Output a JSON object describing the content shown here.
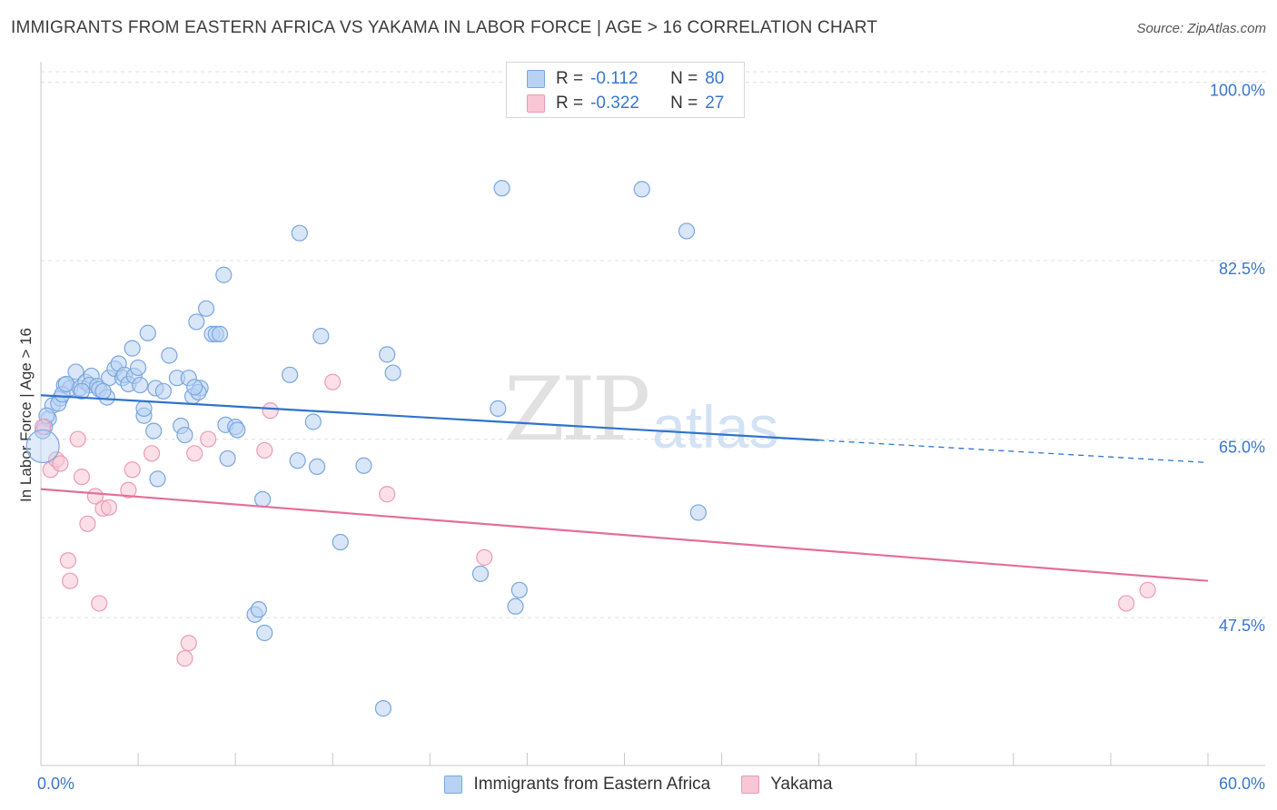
{
  "title": "IMMIGRANTS FROM EASTERN AFRICA VS YAKAMA IN LABOR FORCE | AGE > 16 CORRELATION CHART",
  "source": "Source: ZipAtlas.com",
  "watermark": {
    "main": "ZIP",
    "sub": "atlas"
  },
  "legend_top": [
    {
      "r_label": "R =",
      "r_value": "-0.112",
      "n_label": "N =",
      "n_value": "80"
    },
    {
      "r_label": "R =",
      "r_value": "-0.322",
      "n_label": "N =",
      "n_value": "27"
    }
  ],
  "colors": {
    "blue_fill": "#b8d2f3",
    "blue_stroke": "#7aa6de",
    "blue_line": "#2f73cc",
    "pink_fill": "#f8c6d5",
    "pink_stroke": "#ec9bb4",
    "pink_line": "#e46e9b",
    "axis_text": "#3a76cc",
    "grid": "#e0e0e0"
  },
  "chart_data": {
    "type": "scatter",
    "title": "IMMIGRANTS FROM EASTERN AFRICA VS YAKAMA IN LABOR FORCE | AGE > 16 CORRELATION CHART",
    "xlabel": "",
    "ylabel": "In Labor Force | Age > 16",
    "xlim": [
      0,
      60
    ],
    "ylim": [
      33,
      102
    ],
    "x_tick_labels": [
      {
        "value": 0,
        "label": "0.0%"
      },
      {
        "value": 60,
        "label": "60.0%"
      }
    ],
    "y_tick_labels": [
      {
        "value": 100,
        "label": "100.0%"
      },
      {
        "value": 82.5,
        "label": "82.5%"
      },
      {
        "value": 65,
        "label": "65.0%"
      },
      {
        "value": 47.5,
        "label": "47.5%"
      }
    ],
    "grid": true,
    "series": [
      {
        "name": "Immigrants from Eastern Africa",
        "color": "#7aa6de",
        "R": -0.112,
        "N": 80,
        "trend": {
          "x0": 0,
          "y0": 69.3,
          "x1": 40,
          "y1": 64.9,
          "dashed_to_x": 60,
          "dashed_to_y": 62.7
        },
        "points": [
          [
            0.1,
            65.8
          ],
          [
            0.4,
            67.0
          ],
          [
            0.6,
            68.3
          ],
          [
            1.0,
            69.0
          ],
          [
            1.2,
            70.3
          ],
          [
            1.5,
            70.0
          ],
          [
            1.8,
            71.6
          ],
          [
            2.0,
            70.0
          ],
          [
            2.3,
            70.6
          ],
          [
            2.6,
            71.2
          ],
          [
            2.5,
            70.3
          ],
          [
            2.9,
            70.2
          ],
          [
            3.0,
            69.9
          ],
          [
            3.4,
            69.1
          ],
          [
            3.5,
            71.0
          ],
          [
            3.8,
            71.9
          ],
          [
            4.0,
            72.4
          ],
          [
            4.2,
            71.0
          ],
          [
            4.3,
            71.3
          ],
          [
            4.5,
            70.4
          ],
          [
            4.8,
            71.2
          ],
          [
            5.0,
            72.0
          ],
          [
            4.7,
            73.9
          ],
          [
            5.5,
            75.4
          ],
          [
            5.3,
            67.3
          ],
          [
            5.3,
            68.0
          ],
          [
            5.8,
            65.8
          ],
          [
            5.9,
            70.0
          ],
          [
            6.3,
            69.7
          ],
          [
            6.6,
            73.2
          ],
          [
            7.0,
            71.0
          ],
          [
            7.2,
            66.3
          ],
          [
            7.6,
            71.0
          ],
          [
            7.4,
            65.4
          ],
          [
            7.8,
            69.2
          ],
          [
            8.2,
            70.0
          ],
          [
            8.1,
            69.6
          ],
          [
            8.5,
            77.8
          ],
          [
            8.8,
            75.3
          ],
          [
            9.0,
            75.3
          ],
          [
            9.4,
            81.1
          ],
          [
            8.0,
            76.5
          ],
          [
            9.6,
            63.1
          ],
          [
            9.5,
            66.4
          ],
          [
            10.0,
            66.2
          ],
          [
            10.1,
            65.9
          ],
          [
            11.0,
            47.8
          ],
          [
            11.2,
            48.3
          ],
          [
            11.4,
            59.1
          ],
          [
            11.5,
            46.0
          ],
          [
            12.8,
            71.3
          ],
          [
            13.3,
            85.2
          ],
          [
            13.2,
            62.9
          ],
          [
            14.0,
            66.7
          ],
          [
            14.2,
            62.3
          ],
          [
            14.4,
            75.1
          ],
          [
            15.4,
            54.9
          ],
          [
            16.6,
            62.4
          ],
          [
            17.6,
            38.6
          ],
          [
            17.8,
            73.3
          ],
          [
            18.1,
            71.5
          ],
          [
            22.6,
            51.8
          ],
          [
            23.5,
            68.0
          ],
          [
            23.7,
            89.6
          ],
          [
            24.4,
            48.6
          ],
          [
            24.6,
            50.2
          ],
          [
            30.9,
            89.5
          ],
          [
            33.2,
            85.4
          ],
          [
            33.8,
            57.8
          ],
          [
            0.2,
            66.2
          ],
          [
            0.3,
            67.3
          ],
          [
            0.9,
            68.5
          ],
          [
            1.1,
            69.4
          ],
          [
            1.3,
            70.4
          ],
          [
            2.1,
            69.7
          ],
          [
            3.2,
            69.7
          ],
          [
            5.1,
            70.3
          ],
          [
            7.9,
            70.1
          ],
          [
            9.2,
            75.3
          ],
          [
            6.0,
            61.1
          ]
        ]
      },
      {
        "name": "Yakama",
        "color": "#ec9bb4",
        "R": -0.322,
        "N": 27,
        "trend": {
          "x0": 0,
          "y0": 60.1,
          "x1": 60,
          "y1": 51.1
        },
        "points": [
          [
            0.1,
            66.2
          ],
          [
            0.5,
            62.0
          ],
          [
            0.8,
            63.0
          ],
          [
            1.0,
            62.6
          ],
          [
            1.4,
            53.1
          ],
          [
            1.5,
            51.1
          ],
          [
            1.9,
            65.0
          ],
          [
            2.1,
            61.3
          ],
          [
            2.4,
            56.7
          ],
          [
            2.8,
            59.4
          ],
          [
            3.0,
            48.9
          ],
          [
            3.2,
            58.2
          ],
          [
            3.5,
            58.3
          ],
          [
            4.5,
            60.0
          ],
          [
            4.7,
            62.0
          ],
          [
            5.7,
            63.6
          ],
          [
            7.4,
            43.5
          ],
          [
            7.6,
            45.0
          ],
          [
            7.9,
            63.6
          ],
          [
            8.6,
            65.0
          ],
          [
            11.5,
            63.9
          ],
          [
            11.8,
            67.8
          ],
          [
            15.0,
            70.6
          ],
          [
            17.8,
            59.6
          ],
          [
            22.8,
            53.4
          ],
          [
            55.8,
            48.9
          ],
          [
            56.9,
            50.2
          ]
        ]
      }
    ]
  }
}
